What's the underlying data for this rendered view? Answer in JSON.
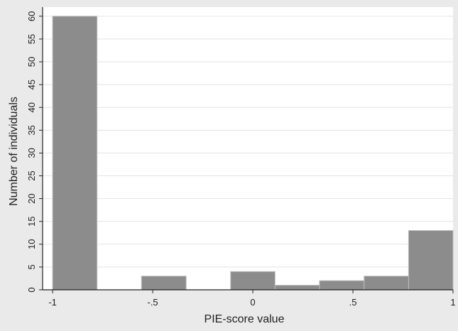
{
  "chart_data": {
    "type": "bar",
    "title": "",
    "xlabel": "PIE-score value",
    "ylabel": "Number of individuals",
    "xlim": [
      -1.05,
      1.0
    ],
    "ylim": [
      0,
      62
    ],
    "x_ticks": [
      {
        "value": -1,
        "label": "-1"
      },
      {
        "value": -0.5,
        "label": "-.5"
      },
      {
        "value": 0,
        "label": "0"
      },
      {
        "value": 0.5,
        "label": ".5"
      },
      {
        "value": 1,
        "label": "1"
      }
    ],
    "y_ticks": [
      {
        "value": 0,
        "label": "0"
      },
      {
        "value": 5,
        "label": "5"
      },
      {
        "value": 10,
        "label": "10"
      },
      {
        "value": 15,
        "label": "15"
      },
      {
        "value": 20,
        "label": "20"
      },
      {
        "value": 25,
        "label": "25"
      },
      {
        "value": 30,
        "label": "30"
      },
      {
        "value": 35,
        "label": "35"
      },
      {
        "value": 40,
        "label": "40"
      },
      {
        "value": 45,
        "label": "45"
      },
      {
        "value": 50,
        "label": "50"
      },
      {
        "value": 55,
        "label": "55"
      },
      {
        "value": 60,
        "label": "60"
      }
    ],
    "bins": [
      {
        "start": -1.0,
        "end": -0.778,
        "count": 60
      },
      {
        "start": -0.556,
        "end": -0.333,
        "count": 3
      },
      {
        "start": -0.111,
        "end": 0.111,
        "count": 4
      },
      {
        "start": 0.111,
        "end": 0.333,
        "count": 1
      },
      {
        "start": 0.333,
        "end": 0.556,
        "count": 2
      },
      {
        "start": 0.556,
        "end": 0.778,
        "count": 3
      },
      {
        "start": 0.778,
        "end": 1.0,
        "count": 13
      }
    ],
    "grid": true,
    "colors": {
      "bar_fill": "#8c8c8c",
      "bar_stroke": "#bdbdbd",
      "plot_bg": "#ffffff",
      "grid": "#e3e3e3",
      "axis": "#222222",
      "background": "#eaeaea"
    }
  }
}
